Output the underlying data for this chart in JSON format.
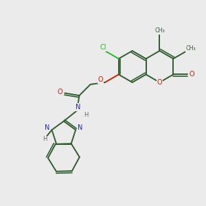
{
  "background_color": "#ebebeb",
  "bond_color": "#2d5c2d",
  "bond_lw": 1.4,
  "atom_colors": {
    "O": "#cc2200",
    "N": "#2222cc",
    "Cl": "#22bb22",
    "H": "#666666",
    "C": "#2d5c2d"
  },
  "figsize": [
    3.0,
    3.0
  ],
  "dpi": 100
}
